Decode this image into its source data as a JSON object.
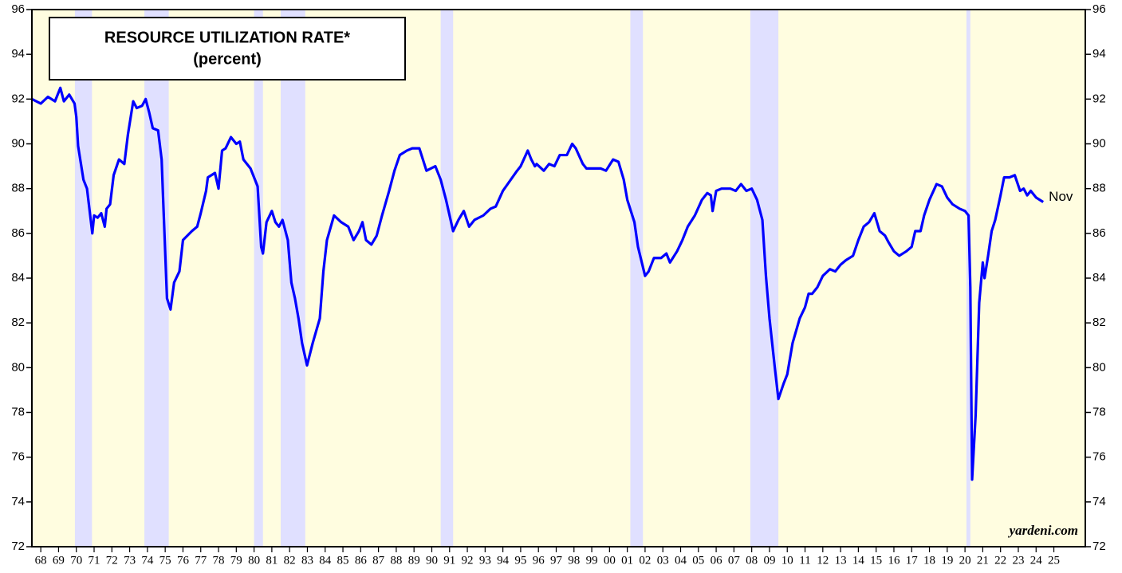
{
  "chart_data": {
    "type": "line",
    "title": "RESOURCE UTILIZATION RATE*",
    "subtitle": "(percent)",
    "end_label": "Nov",
    "source": "yardeni.com",
    "color": "#0000ff",
    "background": "#fffde0",
    "shade_color": "#e0e0ff",
    "ylim": [
      72,
      96
    ],
    "yticks": [
      72,
      74,
      76,
      78,
      80,
      82,
      84,
      86,
      88,
      90,
      92,
      94,
      96
    ],
    "xlim": [
      1967.5,
      2026.77
    ],
    "xticks": [
      {
        "value": 1968,
        "label": "68"
      },
      {
        "value": 1969,
        "label": "69"
      },
      {
        "value": 1970,
        "label": "70"
      },
      {
        "value": 1971,
        "label": "71"
      },
      {
        "value": 1972,
        "label": "72"
      },
      {
        "value": 1973,
        "label": "73"
      },
      {
        "value": 1974,
        "label": "74"
      },
      {
        "value": 1975,
        "label": "75"
      },
      {
        "value": 1976,
        "label": "76"
      },
      {
        "value": 1977,
        "label": "77"
      },
      {
        "value": 1978,
        "label": "78"
      },
      {
        "value": 1979,
        "label": "79"
      },
      {
        "value": 1980,
        "label": "80"
      },
      {
        "value": 1981,
        "label": "81"
      },
      {
        "value": 1982,
        "label": "82"
      },
      {
        "value": 1983,
        "label": "83"
      },
      {
        "value": 1984,
        "label": "84"
      },
      {
        "value": 1985,
        "label": "85"
      },
      {
        "value": 1986,
        "label": "86"
      },
      {
        "value": 1987,
        "label": "87"
      },
      {
        "value": 1988,
        "label": "88"
      },
      {
        "value": 1989,
        "label": "89"
      },
      {
        "value": 1990,
        "label": "90"
      },
      {
        "value": 1991,
        "label": "91"
      },
      {
        "value": 1992,
        "label": "92"
      },
      {
        "value": 1993,
        "label": "93"
      },
      {
        "value": 1994,
        "label": "94"
      },
      {
        "value": 1995,
        "label": "95"
      },
      {
        "value": 1996,
        "label": "96"
      },
      {
        "value": 1997,
        "label": "97"
      },
      {
        "value": 1998,
        "label": "98"
      },
      {
        "value": 1999,
        "label": "99"
      },
      {
        "value": 2000,
        "label": "00"
      },
      {
        "value": 2001,
        "label": "01"
      },
      {
        "value": 2002,
        "label": "02"
      },
      {
        "value": 2003,
        "label": "03"
      },
      {
        "value": 2004,
        "label": "04"
      },
      {
        "value": 2005,
        "label": "05"
      },
      {
        "value": 2006,
        "label": "06"
      },
      {
        "value": 2007,
        "label": "07"
      },
      {
        "value": 2008,
        "label": "08"
      },
      {
        "value": 2009,
        "label": "09"
      },
      {
        "value": 2010,
        "label": "10"
      },
      {
        "value": 2011,
        "label": "11"
      },
      {
        "value": 2012,
        "label": "12"
      },
      {
        "value": 2013,
        "label": "13"
      },
      {
        "value": 2014,
        "label": "14"
      },
      {
        "value": 2015,
        "label": "15"
      },
      {
        "value": 2016,
        "label": "16"
      },
      {
        "value": 2017,
        "label": "17"
      },
      {
        "value": 2018,
        "label": "18"
      },
      {
        "value": 2019,
        "label": "19"
      },
      {
        "value": 2020,
        "label": "20"
      },
      {
        "value": 2021,
        "label": "21"
      },
      {
        "value": 2022,
        "label": "22"
      },
      {
        "value": 2023,
        "label": "23"
      },
      {
        "value": 2024,
        "label": "24"
      },
      {
        "value": 2025,
        "label": "25"
      }
    ],
    "shaded_periods": [
      [
        1969.92,
        1970.88
      ],
      [
        1973.83,
        1975.2
      ],
      [
        1980.0,
        1980.5
      ],
      [
        1981.5,
        1982.88
      ],
      [
        1990.5,
        1991.2
      ],
      [
        2001.17,
        2001.88
      ],
      [
        2007.92,
        2009.5
      ],
      [
        2020.08,
        2020.3
      ]
    ],
    "x": [
      1967.5,
      1968.0,
      1968.4,
      1968.8,
      1969.1,
      1969.3,
      1969.6,
      1969.9,
      1970.0,
      1970.1,
      1970.4,
      1970.6,
      1970.9,
      1971.0,
      1971.2,
      1971.4,
      1971.6,
      1971.7,
      1971.9,
      1972.1,
      1972.4,
      1972.7,
      1972.9,
      1973.2,
      1973.4,
      1973.7,
      1973.9,
      1974.1,
      1974.3,
      1974.6,
      1974.8,
      1974.9,
      1975.1,
      1975.3,
      1975.5,
      1975.8,
      1976.0,
      1976.5,
      1976.8,
      1977.0,
      1977.3,
      1977.4,
      1977.8,
      1978.0,
      1978.2,
      1978.4,
      1978.7,
      1979.0,
      1979.2,
      1979.4,
      1979.6,
      1979.8,
      1980.2,
      1980.4,
      1980.5,
      1980.7,
      1981.0,
      1981.2,
      1981.4,
      1981.6,
      1981.9,
      1982.1,
      1982.3,
      1982.5,
      1982.7,
      1982.98,
      1983.3,
      1983.7,
      1983.9,
      1984.1,
      1984.5,
      1984.9,
      1985.3,
      1985.6,
      1985.9,
      1986.1,
      1986.3,
      1986.6,
      1986.9,
      1987.2,
      1987.6,
      1987.9,
      1988.2,
      1988.6,
      1988.9,
      1989.3,
      1989.5,
      1989.7,
      1990.2,
      1990.5,
      1990.8,
      1991.2,
      1991.5,
      1991.8,
      1992.1,
      1992.4,
      1992.9,
      1993.3,
      1993.6,
      1994.0,
      1994.8,
      1995.0,
      1995.4,
      1995.6,
      1995.8,
      1995.9,
      1996.3,
      1996.6,
      1996.9,
      1997.2,
      1997.6,
      1997.9,
      1998.1,
      1998.5,
      1998.7,
      1999.1,
      1999.5,
      1999.8,
      2000.2,
      2000.5,
      2000.8,
      2001.0,
      2001.4,
      2001.6,
      2002.0,
      2002.2,
      2002.5,
      2002.9,
      2003.2,
      2003.4,
      2003.8,
      2004.1,
      2004.4,
      2004.8,
      2005.2,
      2005.5,
      2005.7,
      2005.8,
      2006.0,
      2006.3,
      2006.8,
      2007.1,
      2007.4,
      2007.7,
      2008.0,
      2008.3,
      2008.6,
      2008.8,
      2009.0,
      2009.3,
      2009.5,
      2009.8,
      2010.0,
      2010.3,
      2010.7,
      2011.0,
      2011.2,
      2011.4,
      2011.7,
      2012.0,
      2012.4,
      2012.7,
      2013.0,
      2013.3,
      2013.7,
      2014.0,
      2014.3,
      2014.6,
      2014.9,
      2015.2,
      2015.5,
      2015.7,
      2016.0,
      2016.3,
      2016.7,
      2017.0,
      2017.2,
      2017.5,
      2017.7,
      2018.0,
      2018.4,
      2018.7,
      2019.0,
      2019.3,
      2019.7,
      2020.0,
      2020.2,
      2020.3,
      2020.4,
      2020.6,
      2020.8,
      2021.0,
      2021.1,
      2021.3,
      2021.5,
      2021.7,
      2022.0,
      2022.2,
      2022.5,
      2022.8,
      2023.1,
      2023.3,
      2023.5,
      2023.7,
      2024.0,
      2024.4
    ],
    "values": [
      92.0,
      91.8,
      92.1,
      91.9,
      92.5,
      91.9,
      92.2,
      91.8,
      91.2,
      89.9,
      88.4,
      88.0,
      86.0,
      86.8,
      86.7,
      86.9,
      86.3,
      87.1,
      87.3,
      88.6,
      89.3,
      89.1,
      90.4,
      91.9,
      91.6,
      91.7,
      92.0,
      91.4,
      90.7,
      90.6,
      89.3,
      87.2,
      83.1,
      82.6,
      83.8,
      84.3,
      85.7,
      86.1,
      86.3,
      86.9,
      87.9,
      88.5,
      88.7,
      88.0,
      89.7,
      89.8,
      90.3,
      90.0,
      90.1,
      89.3,
      89.1,
      88.9,
      88.1,
      85.4,
      85.1,
      86.5,
      87.0,
      86.5,
      86.3,
      86.6,
      85.7,
      83.8,
      83.1,
      82.2,
      81.1,
      80.1,
      81.1,
      82.2,
      84.3,
      85.7,
      86.8,
      86.5,
      86.3,
      85.7,
      86.1,
      86.5,
      85.7,
      85.5,
      85.9,
      86.8,
      87.9,
      88.8,
      89.5,
      89.7,
      89.8,
      89.8,
      89.3,
      88.8,
      89.0,
      88.4,
      87.5,
      86.1,
      86.6,
      87.0,
      86.3,
      86.6,
      86.8,
      87.1,
      87.2,
      87.9,
      88.8,
      89.0,
      89.7,
      89.3,
      89.0,
      89.1,
      88.8,
      89.1,
      89.0,
      89.5,
      89.5,
      90.0,
      89.8,
      89.1,
      88.9,
      88.9,
      88.9,
      88.8,
      89.3,
      89.2,
      88.4,
      87.5,
      86.5,
      85.4,
      84.1,
      84.3,
      84.9,
      84.9,
      85.1,
      84.7,
      85.2,
      85.7,
      86.3,
      86.8,
      87.5,
      87.8,
      87.7,
      87.0,
      87.9,
      88.0,
      88.0,
      87.9,
      88.2,
      87.9,
      88.0,
      87.5,
      86.6,
      84.1,
      82.2,
      80.0,
      78.6,
      79.3,
      79.7,
      81.1,
      82.2,
      82.7,
      83.3,
      83.3,
      83.6,
      84.1,
      84.4,
      84.3,
      84.6,
      84.8,
      85.0,
      85.7,
      86.3,
      86.5,
      86.9,
      86.1,
      85.9,
      85.6,
      85.2,
      85.0,
      85.2,
      85.4,
      86.1,
      86.1,
      86.8,
      87.5,
      88.2,
      88.1,
      87.6,
      87.3,
      87.1,
      87.0,
      86.8,
      83.6,
      75.0,
      77.9,
      82.9,
      84.7,
      84.0,
      85.0,
      86.1,
      86.6,
      87.7,
      88.5,
      88.5,
      88.6,
      87.9,
      88.0,
      87.7,
      87.9,
      87.6,
      87.4
    ]
  }
}
